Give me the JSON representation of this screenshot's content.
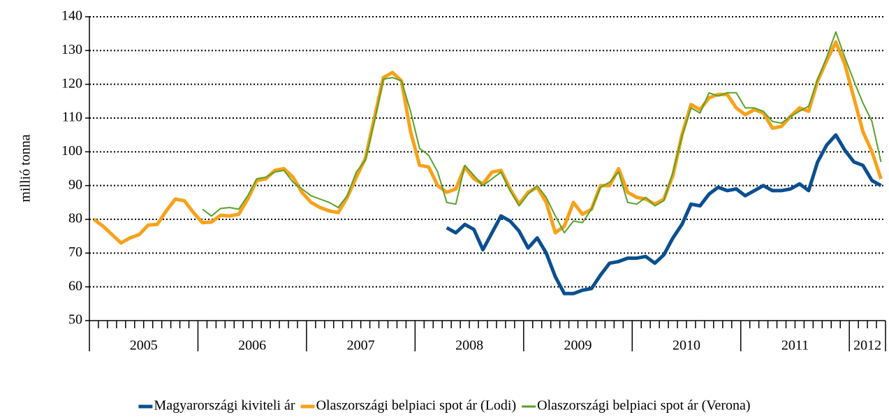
{
  "chart_data": {
    "type": "line",
    "y_label": "millió tonna",
    "categories": [
      "2005",
      null,
      null,
      null,
      null,
      null,
      null,
      null,
      null,
      null,
      null,
      null,
      "2006",
      null,
      null,
      null,
      null,
      null,
      null,
      null,
      null,
      null,
      null,
      null,
      "2007",
      null,
      null,
      null,
      null,
      null,
      null,
      null,
      null,
      null,
      null,
      null,
      "2008",
      null,
      null,
      null,
      null,
      null,
      null,
      null,
      null,
      null,
      null,
      null,
      "2009",
      null,
      null,
      null,
      null,
      null,
      null,
      null,
      null,
      null,
      null,
      null,
      "2010",
      null,
      null,
      null,
      null,
      null,
      null,
      null,
      null,
      null,
      null,
      null,
      "2011",
      null,
      null,
      null,
      null,
      null,
      null,
      null,
      null,
      null,
      null,
      null,
      "2012",
      null,
      null,
      null
    ],
    "ylim": [
      50,
      140
    ],
    "yticks": [
      50,
      60,
      70,
      80,
      90,
      100,
      110,
      120,
      130,
      140
    ],
    "grid": true,
    "legend": "bottom",
    "series": [
      {
        "name": "Magyarországi kiviteli ár",
        "color": "#0b4f8f",
        "width": 5,
        "values": [
          null,
          null,
          null,
          null,
          null,
          null,
          null,
          null,
          null,
          null,
          null,
          null,
          null,
          null,
          null,
          null,
          null,
          null,
          null,
          null,
          null,
          null,
          null,
          null,
          null,
          null,
          null,
          null,
          null,
          null,
          null,
          null,
          null,
          null,
          null,
          null,
          null,
          null,
          null,
          77.5,
          76,
          78.5,
          77,
          71,
          76,
          81,
          79.5,
          76.5,
          71.5,
          74.5,
          70,
          63,
          58,
          58,
          59,
          59.5,
          63.5,
          67,
          67.5,
          68.5,
          68.5,
          69,
          67,
          69.5,
          74.5,
          78.5,
          84.5,
          84,
          87.5,
          89.5,
          88.5,
          89,
          87,
          88.5,
          90,
          88.5,
          88.5,
          89,
          90.5,
          88.5,
          97,
          102,
          105,
          100.5,
          97,
          96,
          91.5,
          90
        ]
      },
      {
        "name": "Olaszországi belpiaci spot ár (Lodi)",
        "color": "#f7a21b",
        "width": 5,
        "values": [
          80,
          78,
          75.5,
          73,
          74.5,
          75.5,
          78.3,
          78.5,
          82.5,
          86,
          85.5,
          82,
          79,
          79.2,
          81.2,
          81,
          81.5,
          86,
          91.5,
          92,
          94.5,
          95,
          92.5,
          88,
          85,
          83.5,
          82.5,
          82,
          86.5,
          92.5,
          98,
          110,
          122,
          123.5,
          121,
          106,
          96,
          95.5,
          90,
          88,
          89,
          95.5,
          92,
          90.5,
          94,
          94.5,
          89,
          84.5,
          88,
          89.5,
          85,
          76,
          78,
          85,
          81.5,
          83,
          90,
          90,
          95,
          88,
          86.5,
          86,
          84.5,
          86,
          93,
          105,
          114,
          112.5,
          116,
          117,
          117,
          113,
          111,
          112.5,
          111.5,
          107,
          107.5,
          110.5,
          113,
          112,
          121,
          127,
          132.5,
          126,
          116,
          106,
          100,
          92
        ]
      },
      {
        "name": "Olaszországi belpiaci spot ár (Verona)",
        "color": "#58a12a",
        "width": 2,
        "values": [
          null,
          null,
          null,
          null,
          null,
          null,
          null,
          null,
          null,
          null,
          null,
          null,
          83,
          81,
          83.2,
          83.5,
          83,
          87,
          92,
          92.5,
          94,
          94.5,
          91,
          89,
          87,
          86,
          85,
          83.5,
          87,
          94,
          97.5,
          109,
          121.5,
          122,
          121,
          112,
          101,
          99,
          94,
          85,
          84.5,
          96,
          93,
          90,
          92,
          94,
          88.5,
          84,
          87.5,
          90,
          86.5,
          81,
          76,
          79.5,
          79,
          83,
          89.5,
          91,
          94,
          85,
          84.5,
          86.5,
          84,
          85.5,
          94,
          104.5,
          113,
          111.5,
          117.5,
          116.5,
          117.5,
          117.5,
          113,
          113,
          112,
          109,
          108.5,
          110.5,
          112,
          113.5,
          121.5,
          128,
          135.5,
          128,
          121,
          114.5,
          109,
          97
        ]
      }
    ]
  }
}
